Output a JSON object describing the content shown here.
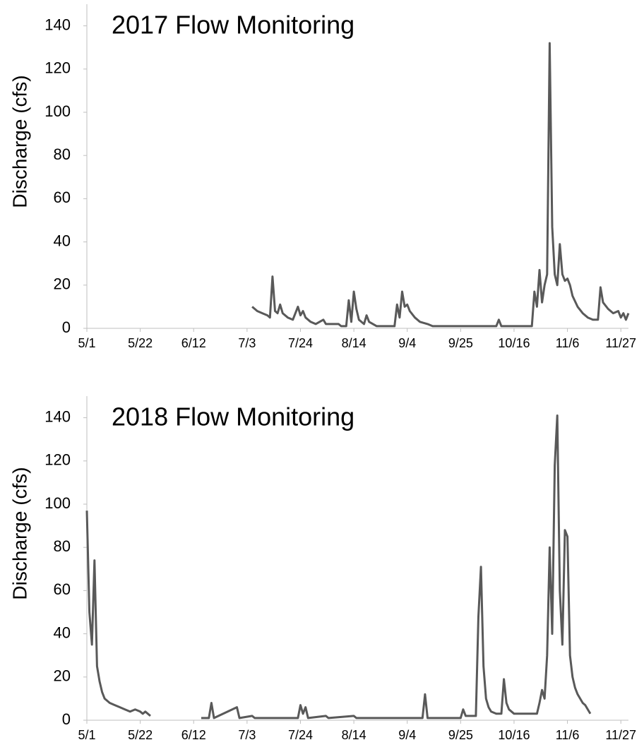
{
  "chart_data": [
    {
      "type": "line",
      "title": "2017 Flow Monitoring",
      "y_label": "Discharge (cfs)",
      "x": [
        "7/5",
        "7/7",
        "7/9",
        "7/11",
        "7/12",
        "7/13",
        "7/14",
        "7/15",
        "7/16",
        "7/17",
        "7/19",
        "7/21",
        "7/23",
        "7/24",
        "7/25",
        "7/26",
        "7/28",
        "7/30",
        "8/2",
        "8/3",
        "8/8",
        "8/9",
        "8/11",
        "8/12",
        "8/13",
        "8/14",
        "8/15",
        "8/16",
        "8/18",
        "8/19",
        "8/20",
        "8/23",
        "8/30",
        "8/31",
        "9/1",
        "9/2",
        "9/3",
        "9/4",
        "9/5",
        "9/7",
        "9/9",
        "9/12",
        "9/14",
        "10/9",
        "10/10",
        "10/11",
        "10/23",
        "10/24",
        "10/25",
        "10/26",
        "10/27",
        "10/28",
        "10/29",
        "10/30",
        "10/31",
        "11/1",
        "11/2",
        "11/3",
        "11/4",
        "11/5",
        "11/6",
        "11/7",
        "11/8",
        "11/10",
        "11/12",
        "11/14",
        "11/16",
        "11/18",
        "11/19",
        "11/20",
        "11/22",
        "11/24",
        "11/26",
        "11/27",
        "11/28",
        "11/29",
        "11/30"
      ],
      "series": [
        {
          "color": "#595959",
          "values": [
            10,
            8,
            7,
            6,
            5,
            24,
            8,
            7,
            11,
            7,
            5,
            4,
            10,
            6,
            8,
            5,
            3,
            2,
            4,
            2,
            2,
            1,
            1,
            13,
            3,
            17,
            9,
            4,
            2,
            6,
            3,
            1,
            1,
            11,
            5,
            17,
            10,
            11,
            8,
            5,
            3,
            2,
            1,
            1,
            4,
            1,
            1,
            17,
            10,
            27,
            12,
            20,
            25,
            132,
            47,
            25,
            20,
            39,
            25,
            22,
            23,
            20,
            15,
            10,
            7,
            5,
            4,
            4,
            19,
            12,
            9,
            7,
            8,
            5,
            7,
            4,
            7
          ]
        }
      ],
      "xlim": [
        "5/1",
        "11/30"
      ],
      "xticks": [
        "5/1",
        "5/22",
        "6/12",
        "7/3",
        "7/24",
        "8/14",
        "9/4",
        "9/25",
        "10/16",
        "11/6",
        "11/27"
      ],
      "ylim": [
        0,
        150
      ],
      "yticks": [
        0,
        20,
        40,
        60,
        80,
        100,
        120,
        140
      ]
    },
    {
      "type": "line",
      "title": "2018 Flow Monitoring",
      "y_label": "Discharge (cfs)",
      "x": [
        "5/1",
        "5/2",
        "5/3",
        "5/4",
        "5/5",
        "5/6",
        "5/7",
        "5/8",
        "5/10",
        "5/12",
        "5/14",
        "5/16",
        "5/18",
        "5/20",
        "5/22",
        "5/23",
        "5/24",
        "5/26",
        "6/1",
        "6/15",
        "6/18",
        "6/19",
        "6/20",
        "6/29",
        "6/30",
        "7/5",
        "7/6",
        "7/23",
        "7/24",
        "7/25",
        "7/26",
        "7/27",
        "8/3",
        "8/4",
        "8/14",
        "8/15",
        "9/10",
        "9/11",
        "9/12",
        "9/25",
        "9/26",
        "9/27",
        "10/1",
        "10/2",
        "10/3",
        "10/4",
        "10/5",
        "10/6",
        "10/7",
        "10/9",
        "10/11",
        "10/12",
        "10/13",
        "10/14",
        "10/16",
        "10/25",
        "10/26",
        "10/27",
        "10/28",
        "10/29",
        "10/30",
        "10/31",
        "11/1",
        "11/2",
        "11/3",
        "11/4",
        "11/5",
        "11/6",
        "11/7",
        "11/8",
        "11/9",
        "11/10",
        "11/11",
        "11/12",
        "11/13",
        "11/14",
        "11/15"
      ],
      "series": [
        {
          "color": "#595959",
          "values": [
            97,
            50,
            35,
            74,
            25,
            18,
            13,
            10,
            8,
            7,
            6,
            5,
            4,
            5,
            4,
            3,
            4,
            2,
            null,
            1,
            1,
            8,
            1,
            6,
            1,
            2,
            1,
            1,
            7,
            3,
            6,
            1,
            2,
            1,
            2,
            1,
            1,
            12,
            1,
            1,
            5,
            2,
            2,
            48,
            71,
            25,
            10,
            6,
            4,
            3,
            3,
            19,
            8,
            5,
            3,
            3,
            8,
            14,
            10,
            30,
            80,
            40,
            118,
            141,
            60,
            35,
            88,
            85,
            30,
            20,
            15,
            12,
            10,
            8,
            7,
            5,
            3
          ]
        }
      ],
      "xlim": [
        "5/1",
        "11/30"
      ],
      "xticks": [
        "5/1",
        "5/22",
        "6/12",
        "7/3",
        "7/24",
        "8/14",
        "9/4",
        "9/25",
        "10/16",
        "11/6",
        "11/27"
      ],
      "ylim": [
        0,
        150
      ],
      "yticks": [
        0,
        20,
        40,
        60,
        80,
        100,
        120,
        140
      ]
    }
  ]
}
